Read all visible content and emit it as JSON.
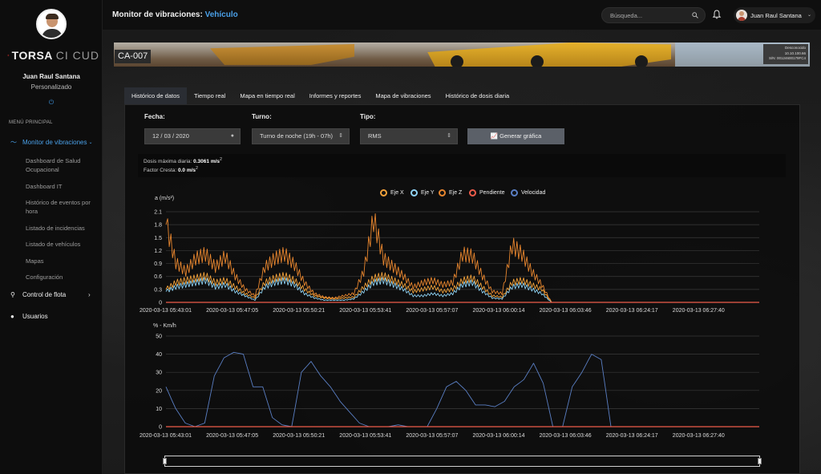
{
  "sidebar": {
    "brand_bold": "TORSA",
    "brand_light": "CI CUD",
    "user_name": "Juan Raul Santana",
    "user_role": "Personalizado",
    "menu_title": "MENÚ PRINCIPAL",
    "items": [
      {
        "label": "Monitor de vibraciones",
        "active": true,
        "icon": "wave-icon",
        "children": [
          "Dashboard de Salud Ocupacional",
          "Dashboard IT",
          "Histórico de eventos por hora",
          "Listado de incidencias",
          "Listado de vehículos",
          "Mapas",
          "Configuración"
        ]
      },
      {
        "label": "Control de flota",
        "active": false,
        "icon": "map-pin-icon"
      },
      {
        "label": "Usuarios",
        "active": false,
        "icon": "user-icon"
      }
    ]
  },
  "header": {
    "title": "Monitor de vibraciones:",
    "title_accent": "Vehículo",
    "search_placeholder": "Búsqueda...",
    "user_name": "Juan Raul Santana"
  },
  "vehicle": {
    "id": "CA-007",
    "status": "Desconocido",
    "ip": "10.10.100.66",
    "serial": "S/N: 00124600179FC4"
  },
  "tabs": [
    "Histórico de datos",
    "Tiempo real",
    "Mapa en tiempo real",
    "Informes y reportes",
    "Mapa de vibraciones",
    "Histórico de dosis diaria"
  ],
  "filters": {
    "fecha_label": "Fecha:",
    "fecha_value": "12 / 03 / 2020",
    "turno_label": "Turno:",
    "turno_value": "Turno de noche (19h - 07h)",
    "tipo_label": "Tipo:",
    "tipo_value": "RMS",
    "button": "Generar gráfica"
  },
  "stats": {
    "dosis_label": "Dosis máxima diaria:",
    "dosis_value": "0.3061 m/s",
    "factor_label": "Factor Cresta:",
    "factor_value": "0.0 m/s"
  },
  "colors": {
    "accent": "#4aa0e8",
    "eje_x": "#f2a23a",
    "eje_y": "#8fd3f4",
    "eje_z": "#e8862e",
    "pendiente": "#ee5c4a",
    "velocidad": "#5a7fc4"
  },
  "chart_data": [
    {
      "type": "line",
      "ylabel": "a (m/s²)",
      "ylim": [
        0,
        2.1
      ],
      "y_ticks": [
        "0",
        "0.3",
        "0.6",
        "0.9",
        "1.2",
        "1.5",
        "1.8",
        "2.1"
      ],
      "x_ticks": [
        "2020-03-13 05:43:01",
        "2020-03-13 05:47:05",
        "2020-03-13 05:50:21",
        "2020-03-13 05:53:41",
        "2020-03-13 05:57:07",
        "2020-03-13 06:00:14",
        "2020-03-13 06:03:46",
        "2020-03-13 06:24:17",
        "2020-03-13 06:27:40"
      ],
      "legend": "top-center",
      "series": [
        {
          "name": "Eje X",
          "values": [
            0.3,
            0.45,
            0.5,
            0.55,
            0.6,
            0.45,
            0.5,
            0.35,
            0.2,
            0.1,
            0.45,
            0.55,
            0.6,
            0.5,
            0.3,
            0.15,
            0.1,
            0.08,
            0.1,
            0.12,
            0.35,
            0.55,
            0.6,
            0.5,
            0.4,
            0.25,
            0.3,
            0.35,
            0.25,
            0.3,
            0.5,
            0.55,
            0.35,
            0.15,
            0.12,
            0.45,
            0.5,
            0.4,
            0.3,
            0,
            0,
            0,
            0,
            0,
            0,
            0
          ]
        },
        {
          "name": "Eje Y",
          "values": [
            0.25,
            0.35,
            0.4,
            0.45,
            0.5,
            0.35,
            0.4,
            0.25,
            0.15,
            0.05,
            0.35,
            0.45,
            0.5,
            0.4,
            0.2,
            0.1,
            0.05,
            0.05,
            0.05,
            0.08,
            0.25,
            0.45,
            0.5,
            0.4,
            0.3,
            0.15,
            0.15,
            0.2,
            0.15,
            0.2,
            0.4,
            0.45,
            0.25,
            0.1,
            0.08,
            0.35,
            0.4,
            0.3,
            0.2,
            0,
            0,
            0,
            0,
            0,
            0,
            0
          ]
        },
        {
          "name": "Eje Z",
          "values": [
            1.8,
            0.9,
            0.7,
            1.0,
            1.1,
            0.8,
            1.05,
            0.6,
            0.3,
            0.15,
            0.8,
            1.0,
            1.1,
            0.85,
            0.45,
            0.2,
            0.12,
            0.1,
            0.15,
            0.2,
            0.7,
            1.9,
            1.0,
            0.8,
            0.6,
            0.35,
            0.45,
            0.5,
            0.4,
            0.45,
            1.1,
            1.05,
            0.6,
            0.25,
            0.2,
            1.3,
            1.1,
            0.7,
            0.4,
            0,
            0,
            0,
            0,
            0,
            0,
            0
          ]
        },
        {
          "name": "Pendiente",
          "values": [
            0,
            0,
            0,
            0,
            0,
            0,
            0,
            0,
            0,
            0,
            0,
            0,
            0,
            0,
            0,
            0,
            0,
            0,
            0,
            0,
            0,
            0,
            0,
            0,
            0,
            0,
            0,
            0,
            0,
            0,
            0,
            0,
            0,
            0,
            0,
            0,
            0,
            0,
            0,
            0,
            0,
            0,
            0,
            0,
            0,
            0
          ]
        }
      ]
    },
    {
      "type": "line",
      "ylabel": "% - Km/h",
      "ylim": [
        0,
        50
      ],
      "y_ticks": [
        "0",
        "10",
        "20",
        "30",
        "40",
        "50"
      ],
      "x_ticks": [
        "2020-03-13 05:43:01",
        "2020-03-13 05:47:05",
        "2020-03-13 05:50:21",
        "2020-03-13 05:53:41",
        "2020-03-13 05:57:07",
        "2020-03-13 06:00:14",
        "2020-03-13 06:03:46",
        "2020-03-13 06:24:17",
        "2020-03-13 06:27:40"
      ],
      "series": [
        {
          "name": "Velocidad",
          "values": [
            22,
            10,
            2,
            0,
            2,
            28,
            38,
            41,
            40,
            22,
            22,
            5,
            1,
            0,
            30,
            36,
            28,
            22,
            14,
            8,
            2,
            0,
            0,
            0,
            1,
            0,
            0,
            0,
            10,
            22,
            25,
            20,
            12,
            12,
            11,
            14,
            22,
            26,
            35,
            24,
            0,
            0,
            22,
            30,
            40,
            37,
            0
          ]
        },
        {
          "name": "Pendiente",
          "values": [
            0,
            0,
            0,
            0,
            0,
            0,
            0,
            0,
            0,
            0,
            0,
            0,
            0,
            0,
            0,
            0,
            0,
            0,
            0,
            0,
            0,
            0,
            0,
            0,
            0,
            0,
            0,
            0,
            0,
            0,
            0,
            0,
            0,
            0,
            0,
            0,
            0,
            0,
            0,
            0,
            0,
            0,
            0,
            0,
            0,
            0,
            0
          ]
        }
      ]
    }
  ]
}
